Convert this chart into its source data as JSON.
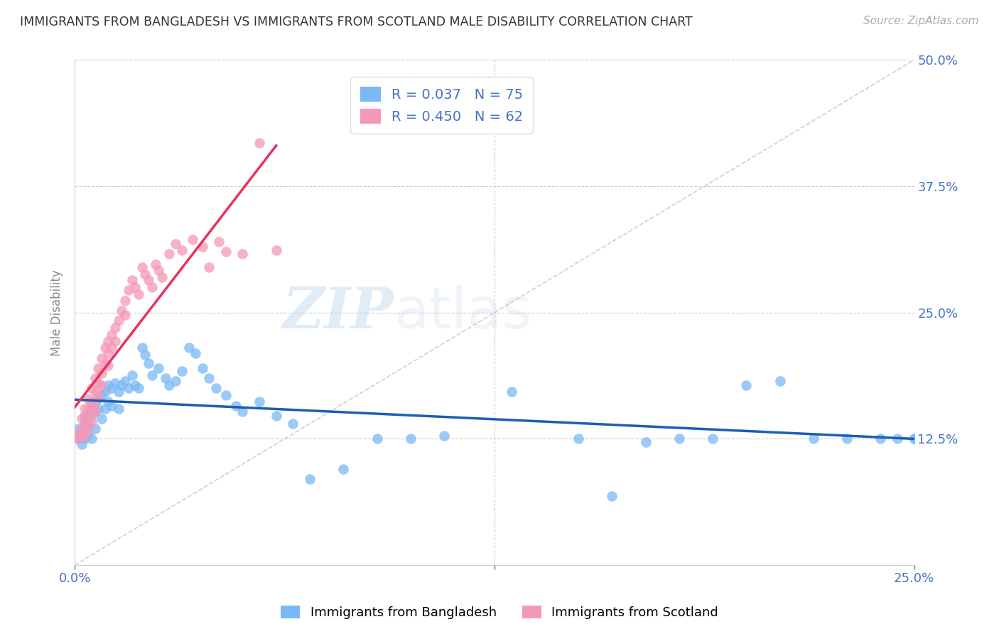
{
  "title": "IMMIGRANTS FROM BANGLADESH VS IMMIGRANTS FROM SCOTLAND MALE DISABILITY CORRELATION CHART",
  "source": "Source: ZipAtlas.com",
  "ylabel": "Male Disability",
  "legend_labels": [
    "Immigrants from Bangladesh",
    "Immigrants from Scotland"
  ],
  "r_bangladesh": 0.037,
  "n_bangladesh": 75,
  "r_scotland": 0.45,
  "n_scotland": 62,
  "color_bangladesh": "#7ab9f5",
  "color_scotland": "#f598b8",
  "trendline_bangladesh": "#1a5fb4",
  "trendline_scotland": "#e8325a",
  "dashed_line_color": "#bbbbbb",
  "watermark_zip": "ZIP",
  "watermark_atlas": "atlas",
  "background_color": "#ffffff",
  "grid_color": "#cccccc",
  "title_color": "#333333",
  "axis_label_color": "#4472c4",
  "xlim": [
    0,
    0.25
  ],
  "ylim": [
    0,
    0.5
  ],
  "x_ticks": [
    0,
    0.125,
    0.25
  ],
  "x_tick_labels": [
    "0.0%",
    "",
    "25.0%"
  ],
  "y_ticks_right": [
    0.125,
    0.25,
    0.375,
    0.5
  ],
  "y_tick_labels_right": [
    "12.5%",
    "25.0%",
    "37.5%",
    "50.0%"
  ],
  "bangladesh_x": [
    0.001,
    0.001,
    0.002,
    0.002,
    0.002,
    0.003,
    0.003,
    0.003,
    0.004,
    0.004,
    0.004,
    0.005,
    0.005,
    0.005,
    0.006,
    0.006,
    0.006,
    0.007,
    0.007,
    0.008,
    0.008,
    0.009,
    0.009,
    0.01,
    0.01,
    0.011,
    0.011,
    0.012,
    0.013,
    0.013,
    0.014,
    0.015,
    0.016,
    0.017,
    0.018,
    0.019,
    0.02,
    0.021,
    0.022,
    0.023,
    0.025,
    0.027,
    0.028,
    0.03,
    0.032,
    0.034,
    0.036,
    0.038,
    0.04,
    0.042,
    0.045,
    0.048,
    0.05,
    0.055,
    0.06,
    0.065,
    0.07,
    0.08,
    0.09,
    0.1,
    0.11,
    0.13,
    0.15,
    0.17,
    0.19,
    0.21,
    0.22,
    0.23,
    0.24,
    0.245,
    0.25,
    0.25,
    0.2,
    0.18,
    0.16
  ],
  "bangladesh_y": [
    0.135,
    0.125,
    0.13,
    0.128,
    0.12,
    0.145,
    0.138,
    0.125,
    0.15,
    0.14,
    0.13,
    0.158,
    0.148,
    0.125,
    0.162,
    0.152,
    0.135,
    0.165,
    0.155,
    0.168,
    0.145,
    0.172,
    0.155,
    0.178,
    0.162,
    0.175,
    0.158,
    0.18,
    0.172,
    0.155,
    0.178,
    0.182,
    0.175,
    0.188,
    0.178,
    0.175,
    0.215,
    0.208,
    0.2,
    0.188,
    0.195,
    0.185,
    0.178,
    0.182,
    0.192,
    0.215,
    0.21,
    0.195,
    0.185,
    0.175,
    0.168,
    0.158,
    0.152,
    0.162,
    0.148,
    0.14,
    0.085,
    0.095,
    0.125,
    0.125,
    0.128,
    0.172,
    0.125,
    0.122,
    0.125,
    0.182,
    0.125,
    0.125,
    0.125,
    0.125,
    0.125,
    0.125,
    0.178,
    0.125,
    0.068
  ],
  "scotland_x": [
    0.001,
    0.001,
    0.002,
    0.002,
    0.002,
    0.003,
    0.003,
    0.003,
    0.003,
    0.004,
    0.004,
    0.004,
    0.004,
    0.005,
    0.005,
    0.005,
    0.005,
    0.006,
    0.006,
    0.006,
    0.006,
    0.007,
    0.007,
    0.007,
    0.008,
    0.008,
    0.008,
    0.009,
    0.009,
    0.01,
    0.01,
    0.01,
    0.011,
    0.011,
    0.012,
    0.012,
    0.013,
    0.014,
    0.015,
    0.015,
    0.016,
    0.017,
    0.018,
    0.019,
    0.02,
    0.021,
    0.022,
    0.023,
    0.024,
    0.025,
    0.026,
    0.028,
    0.03,
    0.032,
    0.035,
    0.038,
    0.04,
    0.043,
    0.045,
    0.05,
    0.055,
    0.06
  ],
  "scotland_y": [
    0.13,
    0.125,
    0.145,
    0.135,
    0.128,
    0.155,
    0.148,
    0.138,
    0.128,
    0.165,
    0.155,
    0.145,
    0.135,
    0.175,
    0.162,
    0.152,
    0.142,
    0.185,
    0.172,
    0.162,
    0.152,
    0.195,
    0.18,
    0.168,
    0.205,
    0.19,
    0.178,
    0.215,
    0.2,
    0.222,
    0.21,
    0.198,
    0.228,
    0.215,
    0.235,
    0.222,
    0.242,
    0.252,
    0.262,
    0.248,
    0.272,
    0.282,
    0.275,
    0.268,
    0.295,
    0.288,
    0.282,
    0.275,
    0.298,
    0.292,
    0.285,
    0.308,
    0.318,
    0.312,
    0.322,
    0.315,
    0.295,
    0.32,
    0.31,
    0.308,
    0.418,
    0.312
  ]
}
